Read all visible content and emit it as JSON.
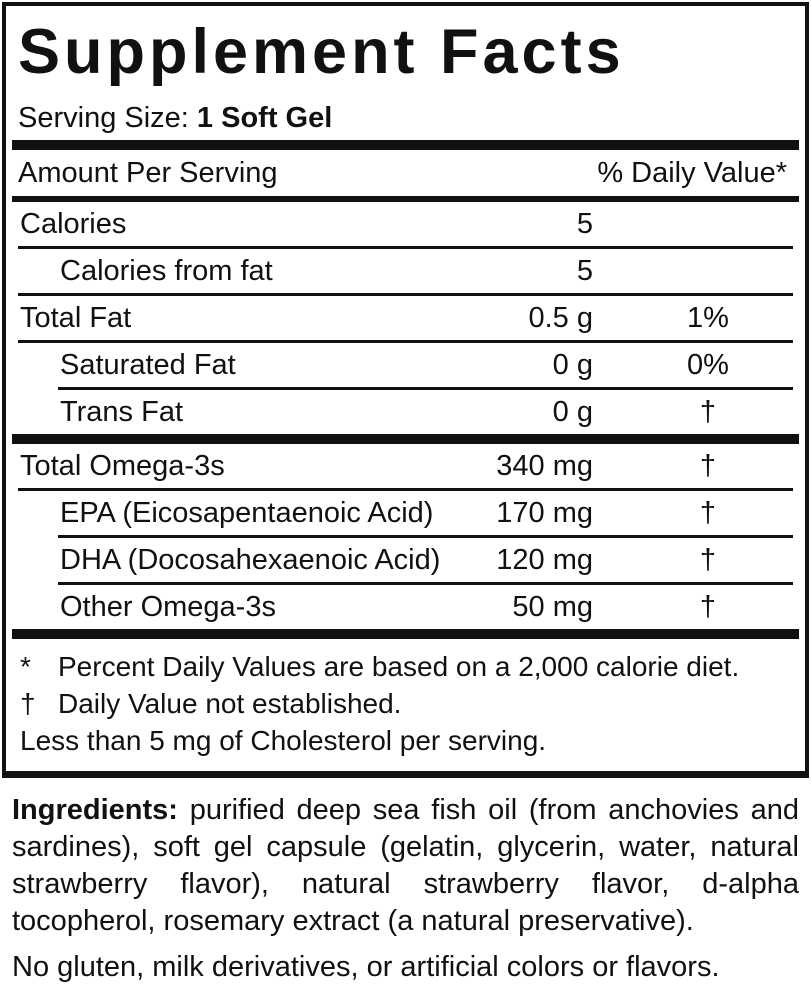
{
  "title": "Supplement Facts",
  "serving": {
    "label": "Serving Size:",
    "value": "1 Soft Gel"
  },
  "table": {
    "header": {
      "amount_col": "Amount Per Serving",
      "dv_col": "% Daily Value*"
    },
    "sections": [
      {
        "rows": [
          {
            "label": "Calories",
            "amount": "5",
            "dv": "",
            "indent": false,
            "sep": "none"
          },
          {
            "label": "Calories from fat",
            "amount": "5",
            "dv": "",
            "indent": true,
            "sep": "full"
          },
          {
            "label": "Total Fat",
            "amount": "0.5 g",
            "dv": "1%",
            "indent": false,
            "sep": "full"
          },
          {
            "label": "Saturated Fat",
            "amount": "0 g",
            "dv": "0%",
            "indent": true,
            "sep": "full"
          },
          {
            "label": "Trans Fat",
            "amount": "0 g",
            "dv": "†",
            "indent": true,
            "sep": "indent"
          }
        ]
      },
      {
        "rows": [
          {
            "label": "Total Omega-3s",
            "amount": "340 mg",
            "dv": "†",
            "indent": false,
            "sep": "none"
          },
          {
            "label": "EPA (Eicosapentaenoic Acid)",
            "amount": "170 mg",
            "dv": "†",
            "indent": true,
            "sep": "full"
          },
          {
            "label": "DHA (Docosahexaenoic Acid)",
            "amount": "120 mg",
            "dv": "†",
            "indent": true,
            "sep": "indent"
          },
          {
            "label": "Other Omega-3s",
            "amount": "50 mg",
            "dv": "†",
            "indent": true,
            "sep": "indent"
          }
        ]
      }
    ]
  },
  "footnotes": [
    {
      "symbol": "*",
      "text": "Percent Daily Values are based on a 2,000 calorie diet."
    },
    {
      "symbol": "†",
      "text": "Daily Value not established."
    },
    {
      "symbol": "",
      "text": "Less than 5 mg of Cholesterol per serving."
    }
  ],
  "ingredients": {
    "label": "Ingredients:",
    "text": "purified deep sea fish oil (from anchovies and sardines), soft gel capsule (gelatin, glycerin, water, natural strawberry flavor), natural strawberry flavor, d-alpha tocopherol, rosemary extract (a natural preservative)."
  },
  "allergen_note": "No gluten, milk derivatives, or artificial colors or flavors.",
  "colors": {
    "text": "#111111",
    "background": "#ffffff",
    "rule": "#111111"
  }
}
